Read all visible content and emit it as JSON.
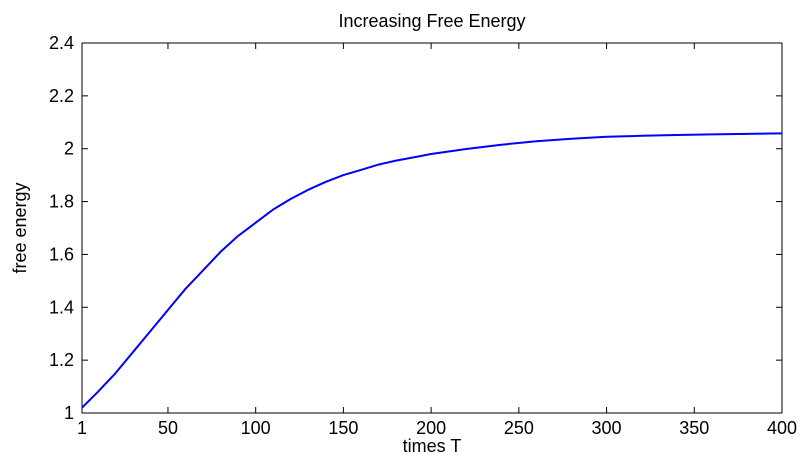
{
  "chart_data": {
    "type": "line",
    "title": "Increasing Free Energy",
    "xlabel": "times T",
    "ylabel": "free energy",
    "xlim": [
      1,
      400
    ],
    "ylim": [
      1,
      2.4
    ],
    "xticks": [
      1,
      50,
      100,
      150,
      200,
      250,
      300,
      350,
      400
    ],
    "xtick_labels": [
      "1",
      "50",
      "100",
      "150",
      "200",
      "250",
      "300",
      "350",
      "400"
    ],
    "yticks": [
      1,
      1.2,
      1.4,
      1.6,
      1.8,
      2,
      2.2,
      2.4
    ],
    "ytick_labels": [
      "1",
      "1.2",
      "1.4",
      "1.6",
      "1.8",
      "2",
      "2.2",
      "2.4"
    ],
    "grid": false,
    "line_color": "#0000ff",
    "series": [
      {
        "x": [
          1,
          10,
          20,
          30,
          40,
          50,
          60,
          70,
          80,
          90,
          100,
          110,
          120,
          130,
          140,
          150,
          160,
          170,
          180,
          190,
          200,
          220,
          240,
          260,
          280,
          300,
          320,
          340,
          360,
          380,
          400
        ],
        "values": [
          1.02,
          1.08,
          1.15,
          1.23,
          1.31,
          1.39,
          1.47,
          1.54,
          1.61,
          1.67,
          1.72,
          1.77,
          1.81,
          1.845,
          1.875,
          1.9,
          1.92,
          1.94,
          1.955,
          1.967,
          1.98,
          1.999,
          2.015,
          2.028,
          2.038,
          2.045,
          2.049,
          2.052,
          2.054,
          2.056,
          2.058
        ]
      }
    ]
  }
}
